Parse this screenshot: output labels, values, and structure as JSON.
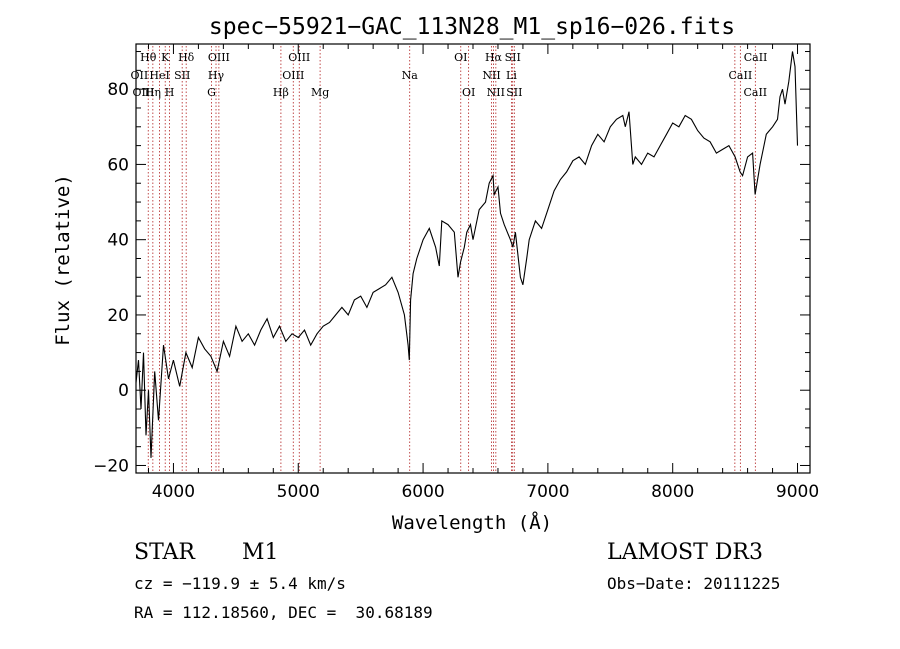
{
  "chart_data": {
    "type": "line",
    "title": "spec−55921−GAC_113N28_M1_sp16−026.fits",
    "xlabel": "Wavelength (Å)",
    "ylabel": "Flux (relative)",
    "xlim": [
      3700,
      9100
    ],
    "ylim": [
      -22,
      92
    ],
    "x_ticks": [
      4000,
      5000,
      6000,
      7000,
      8000,
      9000
    ],
    "y_ticks": [
      -20,
      0,
      20,
      40,
      60,
      80
    ],
    "x_tick_labels": [
      "4000",
      "5000",
      "6000",
      "7000",
      "8000",
      "9000"
    ],
    "y_tick_labels": [
      "−20",
      "0",
      "20",
      "40",
      "60",
      "80"
    ],
    "line_color": "#000000",
    "marker_color": "#b22222",
    "series": [
      {
        "name": "flux",
        "x": [
          3700,
          3720,
          3740,
          3760,
          3780,
          3800,
          3820,
          3850,
          3880,
          3920,
          3960,
          4000,
          4050,
          4100,
          4150,
          4200,
          4250,
          4300,
          4350,
          4400,
          4450,
          4500,
          4550,
          4600,
          4650,
          4700,
          4750,
          4800,
          4850,
          4900,
          4950,
          5000,
          5050,
          5100,
          5150,
          5200,
          5250,
          5300,
          5350,
          5400,
          5450,
          5500,
          5550,
          5600,
          5650,
          5700,
          5750,
          5800,
          5850,
          5880,
          5890,
          5900,
          5920,
          5950,
          6000,
          6050,
          6100,
          6130,
          6150,
          6200,
          6250,
          6280,
          6300,
          6330,
          6350,
          6380,
          6400,
          6450,
          6500,
          6530,
          6560,
          6570,
          6600,
          6620,
          6650,
          6700,
          6720,
          6740,
          6760,
          6780,
          6800,
          6830,
          6850,
          6900,
          6950,
          7000,
          7050,
          7100,
          7150,
          7200,
          7250,
          7300,
          7350,
          7400,
          7450,
          7500,
          7550,
          7600,
          7620,
          7650,
          7680,
          7700,
          7750,
          7800,
          7850,
          7900,
          7950,
          8000,
          8050,
          8100,
          8150,
          8200,
          8250,
          8300,
          8350,
          8400,
          8450,
          8500,
          8540,
          8560,
          8600,
          8640,
          8660,
          8700,
          8750,
          8800,
          8840,
          8860,
          8880,
          8900,
          8930,
          8960,
          8980,
          9000
        ],
        "y": [
          2,
          8,
          -5,
          10,
          -12,
          0,
          -18,
          5,
          -8,
          12,
          3,
          8,
          1,
          10,
          6,
          14,
          11,
          9,
          5,
          13,
          9,
          17,
          13,
          15,
          12,
          16,
          19,
          14,
          17,
          13,
          15,
          14,
          16,
          12,
          15,
          17,
          18,
          20,
          22,
          20,
          24,
          25,
          22,
          26,
          27,
          28,
          30,
          26,
          20,
          12,
          8,
          24,
          31,
          35,
          40,
          43,
          38,
          33,
          45,
          44,
          42,
          30,
          34,
          38,
          42,
          44,
          40,
          48,
          50,
          55,
          57,
          52,
          54,
          47,
          44,
          40,
          38,
          42,
          36,
          30,
          28,
          35,
          40,
          45,
          43,
          48,
          53,
          56,
          58,
          61,
          62,
          60,
          65,
          68,
          66,
          70,
          72,
          73,
          70,
          74,
          60,
          62,
          60,
          63,
          62,
          65,
          68,
          71,
          70,
          73,
          72,
          69,
          67,
          66,
          63,
          64,
          65,
          62,
          58,
          57,
          62,
          63,
          52,
          60,
          68,
          70,
          72,
          78,
          80,
          76,
          82,
          90,
          86,
          65
        ]
      }
    ],
    "line_markers": [
      {
        "label": "Hθ",
        "x": 3798,
        "row": 1
      },
      {
        "label": "K",
        "x": 3934,
        "row": 1
      },
      {
        "label": "Hδ",
        "x": 4102,
        "row": 1
      },
      {
        "label": "OIII",
        "x": 4364,
        "row": 1
      },
      {
        "label": "OIII",
        "x": 5008,
        "row": 1
      },
      {
        "label": "OI",
        "x": 6302,
        "row": 1
      },
      {
        "label": "Hα",
        "x": 6564,
        "row": 1
      },
      {
        "label": "SII",
        "x": 6718,
        "row": 1
      },
      {
        "label": "CaII",
        "x": 8664,
        "row": 1
      },
      {
        "label": "OII",
        "x": 3727,
        "row": 2
      },
      {
        "label": "HeI",
        "x": 3889,
        "row": 2
      },
      {
        "label": "SII",
        "x": 4070,
        "row": 2
      },
      {
        "label": "Hγ",
        "x": 4341,
        "row": 2
      },
      {
        "label": "OIII",
        "x": 4960,
        "row": 2
      },
      {
        "label": "Na",
        "x": 5893,
        "row": 2
      },
      {
        "label": "NII",
        "x": 6549,
        "row": 2
      },
      {
        "label": "Li",
        "x": 6708,
        "row": 2
      },
      {
        "label": "CaII",
        "x": 8542,
        "row": 2
      },
      {
        "label": "OIII",
        "x": 3760,
        "row": 3
      },
      {
        "label": "Hη",
        "x": 3835,
        "row": 3
      },
      {
        "label": "H",
        "x": 3969,
        "row": 3
      },
      {
        "label": "G",
        "x": 4305,
        "row": 3
      },
      {
        "label": "Hβ",
        "x": 4861,
        "row": 3
      },
      {
        "label": "Mg",
        "x": 5175,
        "row": 3
      },
      {
        "label": "OI",
        "x": 6365,
        "row": 3
      },
      {
        "label": "NII",
        "x": 6583,
        "row": 3
      },
      {
        "label": "SII",
        "x": 6731,
        "row": 3
      },
      {
        "label": "CaII",
        "x": 8662,
        "row": 3
      }
    ],
    "extra_marker_lines": [
      3798,
      3835,
      3889,
      3934,
      3969,
      4070,
      4102,
      4305,
      4341,
      4364,
      4861,
      4960,
      5008,
      5175,
      5893,
      6302,
      6365,
      6549,
      6564,
      6583,
      6708,
      6718,
      6731,
      8498,
      8542,
      8662
    ]
  },
  "info": {
    "object_class": "STAR",
    "subclass": "M1",
    "survey": "LAMOST DR3",
    "velocity": "cz = −119.9 ± 5.4 km/s",
    "obs_date": "Obs−Date: 20111225",
    "coords": "RA = 112.18560, DEC =  30.68189"
  }
}
